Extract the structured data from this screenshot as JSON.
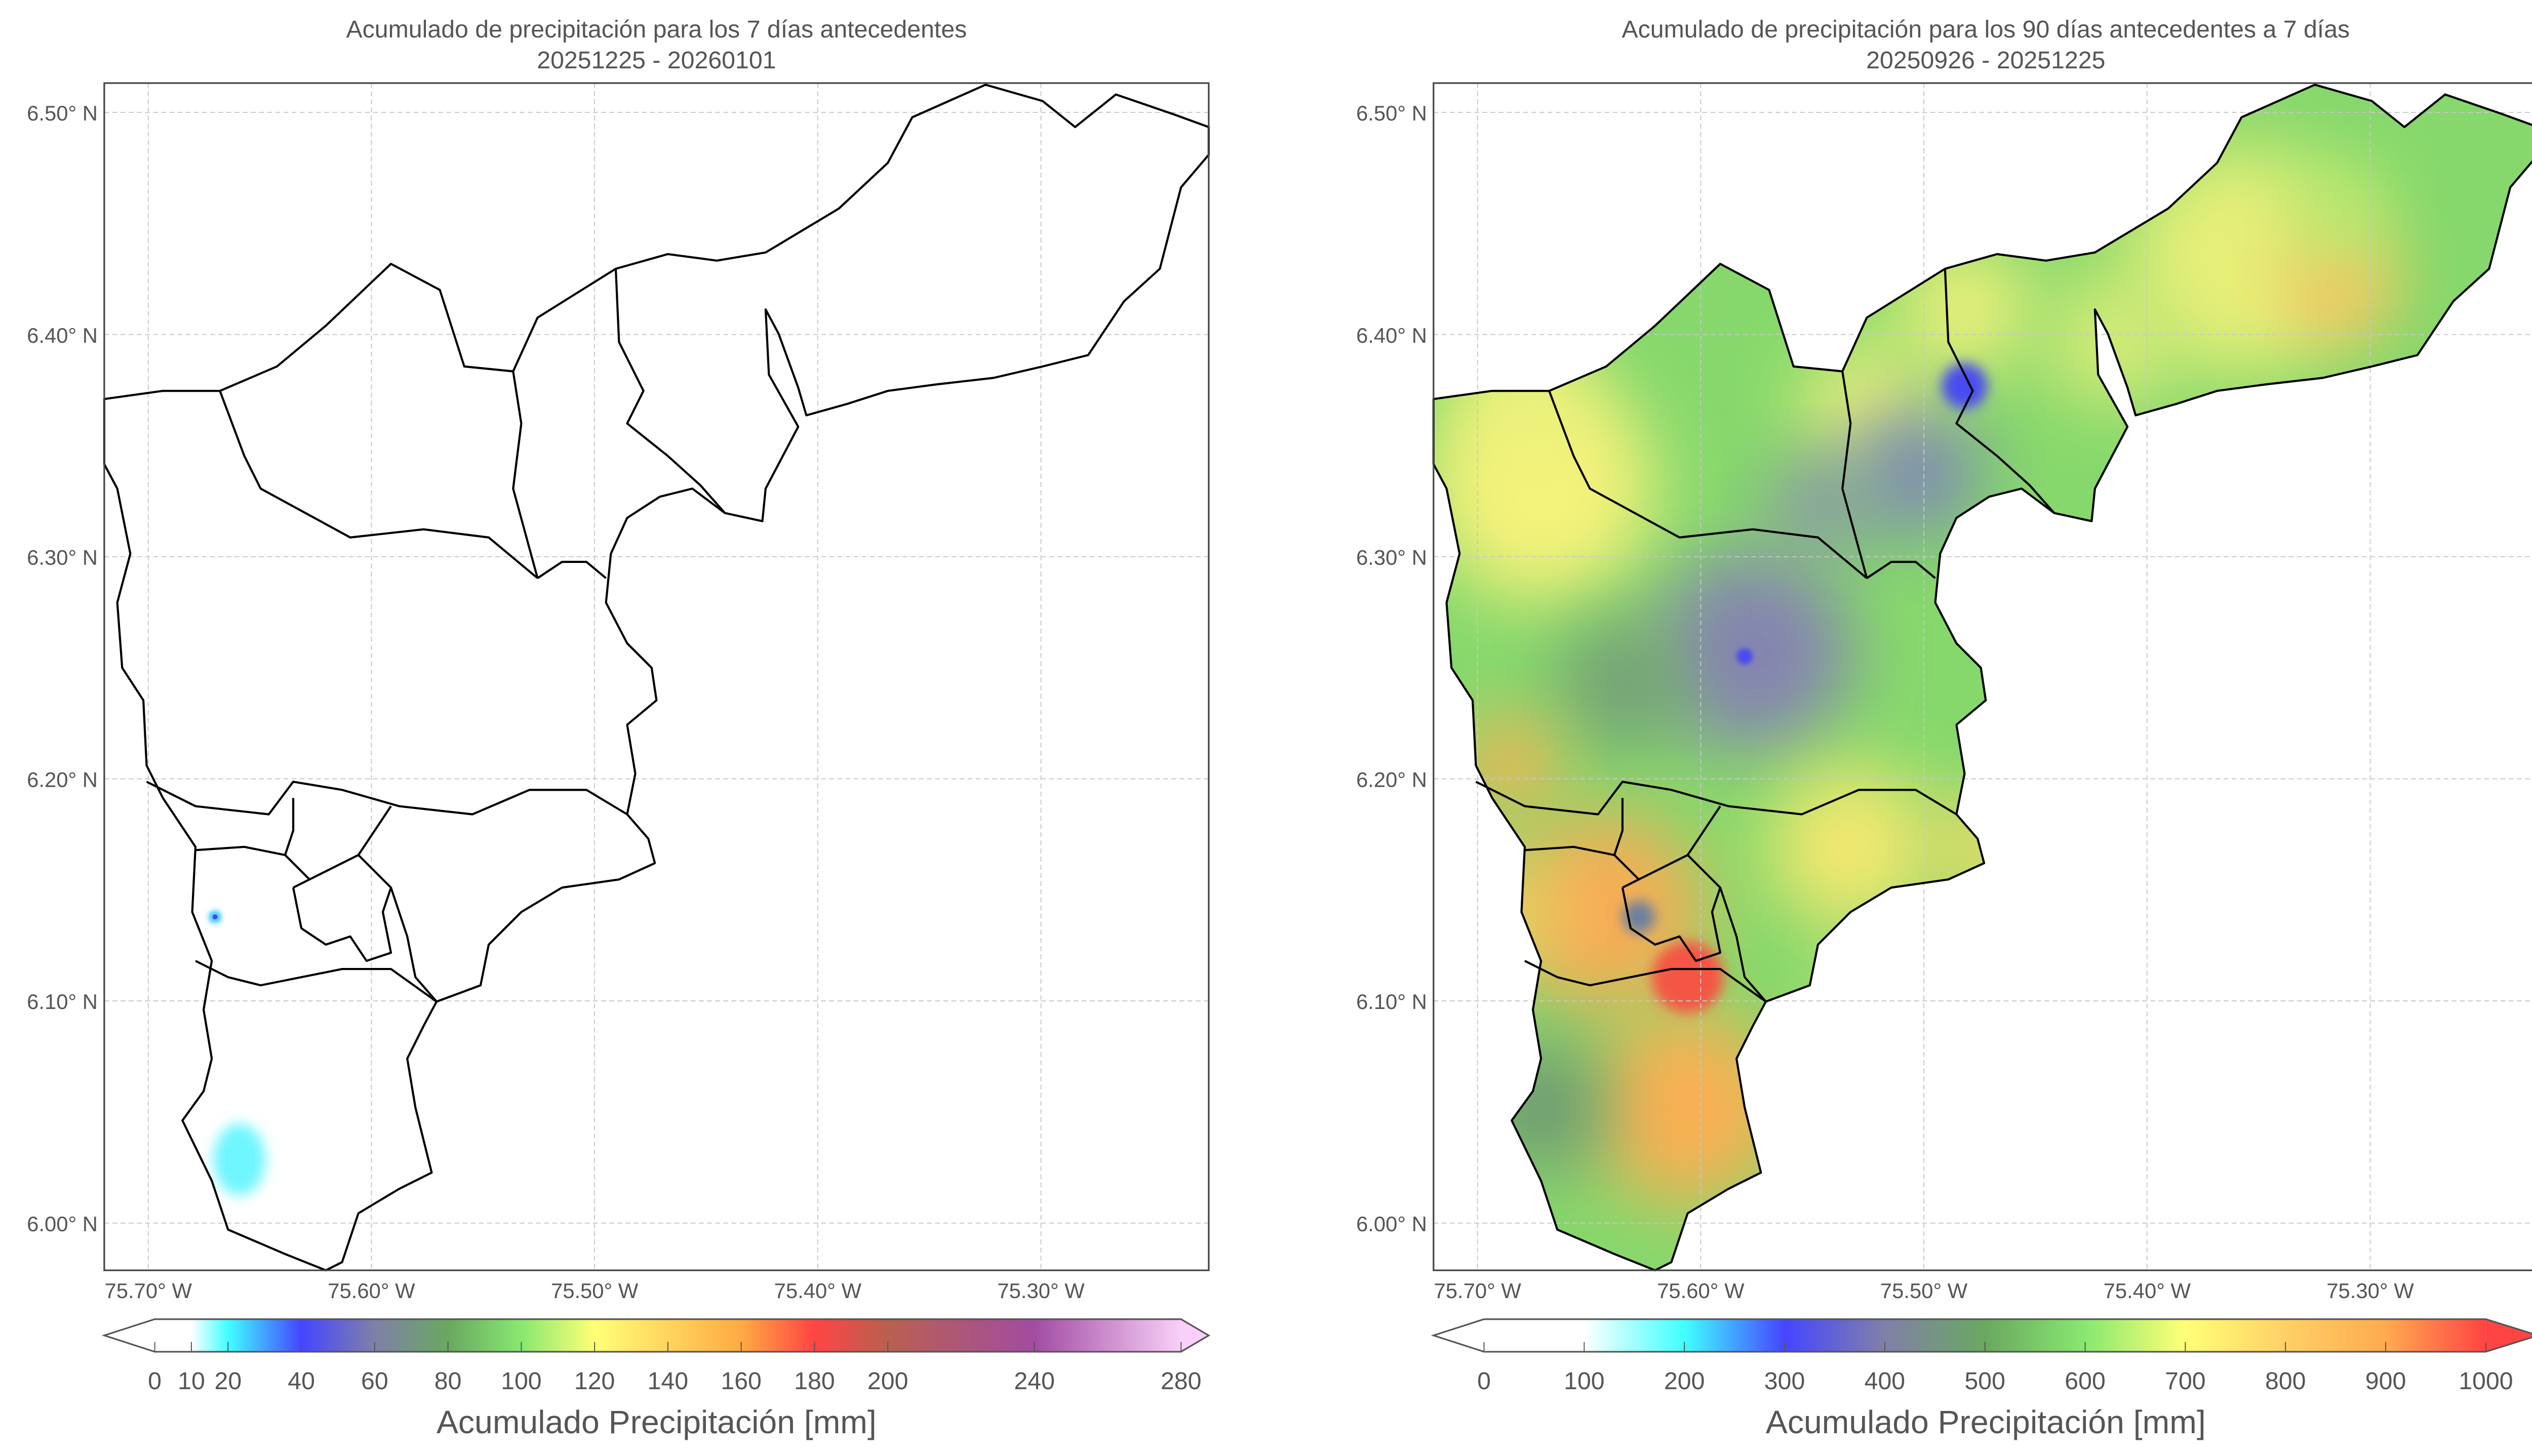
{
  "chart_data": [
    {
      "type": "heatmap",
      "title": "Acumulado de precipitación para los 7 días antecedentes",
      "subtitle": "20251225 - 20260101",
      "x_ticks": [
        -75.7,
        -75.6,
        -75.5,
        -75.4,
        -75.3
      ],
      "x_tick_labels": [
        "75.70° W",
        "75.60° W",
        "75.50° W",
        "75.40° W",
        "75.30° W"
      ],
      "y_ticks": [
        6.0,
        6.1,
        6.2,
        6.3,
        6.4,
        6.5
      ],
      "y_tick_labels": [
        "6.00° N",
        "6.10° N",
        "6.20° N",
        "6.30° N",
        "6.40° N",
        "6.50° N"
      ],
      "xlim": [
        -75.72,
        -75.225
      ],
      "ylim": [
        5.979,
        6.513
      ],
      "grid": true,
      "colorbar": {
        "label": "Acumulado Precipitación [mm]",
        "range": [
          0,
          280
        ],
        "ticks": [
          0,
          10,
          20,
          40,
          60,
          80,
          100,
          120,
          140,
          160,
          180,
          200,
          240,
          280
        ],
        "tick_labels": [
          "0",
          "10",
          "20",
          "40",
          "60",
          "80",
          "100",
          "120",
          "140",
          "160",
          "180",
          "200",
          "240",
          "280"
        ],
        "extend": "both",
        "placement": "bottom",
        "stops": [
          [
            0,
            "#ffffff"
          ],
          [
            10,
            "#ffffff"
          ],
          [
            20,
            "#40ffff"
          ],
          [
            40,
            "#4545ff"
          ],
          [
            60,
            "#7f80a8"
          ],
          [
            80,
            "#6aa860"
          ],
          [
            100,
            "#88e870"
          ],
          [
            120,
            "#ffff77"
          ],
          [
            160,
            "#ffaa44"
          ],
          [
            180,
            "#ff4444"
          ],
          [
            200,
            "#b86050"
          ],
          [
            240,
            "#a24ca2"
          ],
          [
            280,
            "#f8d0f8"
          ]
        ]
      },
      "field_features": [
        {
          "lon": -75.615,
          "lat": 6.137,
          "value": 45
        },
        {
          "lon": -75.605,
          "lat": 6.028,
          "value": 20
        }
      ]
    },
    {
      "type": "heatmap",
      "title": "Acumulado de precipitación para los 90 días antecedentes a 7 días",
      "subtitle": "20250926 - 20251225",
      "x_ticks": [
        -75.7,
        -75.6,
        -75.5,
        -75.4,
        -75.3
      ],
      "x_tick_labels": [
        "75.70° W",
        "75.60° W",
        "75.50° W",
        "75.40° W",
        "75.30° W"
      ],
      "y_ticks": [
        6.0,
        6.1,
        6.2,
        6.3,
        6.4,
        6.5
      ],
      "y_tick_labels": [
        "6.00° N",
        "6.10° N",
        "6.20° N",
        "6.30° N",
        "6.40° N",
        "6.50° N"
      ],
      "xlim": [
        -75.72,
        -75.225
      ],
      "ylim": [
        5.979,
        6.513
      ],
      "grid": true,
      "colorbar": {
        "label": "Acumulado Precipitación [mm]",
        "range": [
          0,
          1000
        ],
        "ticks": [
          0,
          100,
          200,
          300,
          400,
          500,
          600,
          700,
          800,
          900,
          1000
        ],
        "tick_labels": [
          "0",
          "100",
          "200",
          "300",
          "400",
          "500",
          "600",
          "700",
          "800",
          "900",
          "1000"
        ],
        "extend": "both",
        "placement": "bottom",
        "stops": [
          [
            0,
            "#ffffff"
          ],
          [
            100,
            "#ffffff"
          ],
          [
            200,
            "#40ffff"
          ],
          [
            300,
            "#4545ff"
          ],
          [
            400,
            "#8080a8"
          ],
          [
            500,
            "#6aa860"
          ],
          [
            600,
            "#88e870"
          ],
          [
            700,
            "#ffff77"
          ],
          [
            800,
            "#ffd066"
          ],
          [
            900,
            "#ffaa50"
          ],
          [
            1000,
            "#ff4444"
          ]
        ]
      },
      "field_features": [
        {
          "lon": -75.48,
          "lat": 6.377,
          "value": 300
        },
        {
          "lon": -75.58,
          "lat": 6.255,
          "value": 350
        },
        {
          "lon": -75.6,
          "lat": 6.112,
          "value": 1000
        },
        {
          "lon": -75.32,
          "lat": 6.42,
          "value": 800
        },
        {
          "lon": -75.68,
          "lat": 6.2,
          "value": 850
        },
        {
          "lon": -75.6,
          "lat": 6.04,
          "value": 850
        }
      ]
    }
  ]
}
